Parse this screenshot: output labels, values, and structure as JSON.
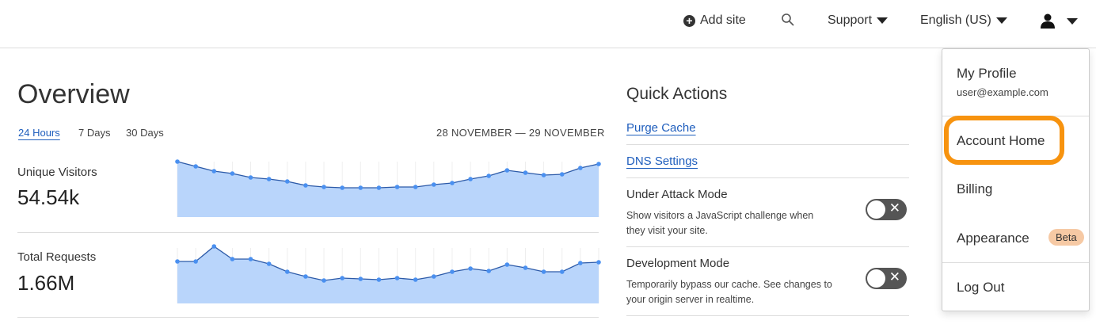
{
  "topbar": {
    "add_site": "Add site",
    "support": "Support",
    "language": "English (US)"
  },
  "overview": {
    "title": "Overview",
    "ranges": [
      "24 Hours",
      "7 Days",
      "30 Days"
    ],
    "active_range": "24 Hours",
    "date_range": "28 NOVEMBER — 29 NOVEMBER"
  },
  "metrics": [
    {
      "label": "Unique Visitors",
      "value": "54.54k"
    },
    {
      "label": "Total Requests",
      "value": "1.66M"
    }
  ],
  "chart_data": [
    {
      "type": "area",
      "series": [
        {
          "values": [
            70,
            64,
            58,
            55,
            50,
            48,
            45,
            40,
            38,
            37,
            37,
            37,
            38,
            38,
            41,
            43,
            48,
            52,
            59,
            56,
            53,
            54,
            62,
            67
          ]
        }
      ],
      "color": "#4a90f0",
      "fill": "#b9d5fb"
    },
    {
      "type": "area",
      "series": [
        {
          "values": [
            53,
            53,
            72,
            56,
            56,
            50,
            40,
            34,
            29,
            32,
            31,
            30,
            32,
            30,
            34,
            40,
            44,
            41,
            49,
            45,
            40,
            40,
            51,
            52
          ]
        }
      ],
      "color": "#4a90f0",
      "fill": "#b9d5fb"
    }
  ],
  "quick_actions": {
    "title": "Quick Actions",
    "links": [
      "Purge Cache",
      "DNS Settings"
    ],
    "toggles": [
      {
        "title": "Under Attack Mode",
        "desc": "Show visitors a JavaScript challenge when they visit your site.",
        "on": false
      },
      {
        "title": "Development Mode",
        "desc": "Temporarily bypass our cache. See changes to your origin server in realtime.",
        "on": false
      }
    ]
  },
  "menu": {
    "profile": "My Profile",
    "email": "user@example.com",
    "account_home": "Account Home",
    "billing": "Billing",
    "appearance": "Appearance",
    "beta": "Beta",
    "logout": "Log Out",
    "highlight_color": "#f7930f"
  }
}
